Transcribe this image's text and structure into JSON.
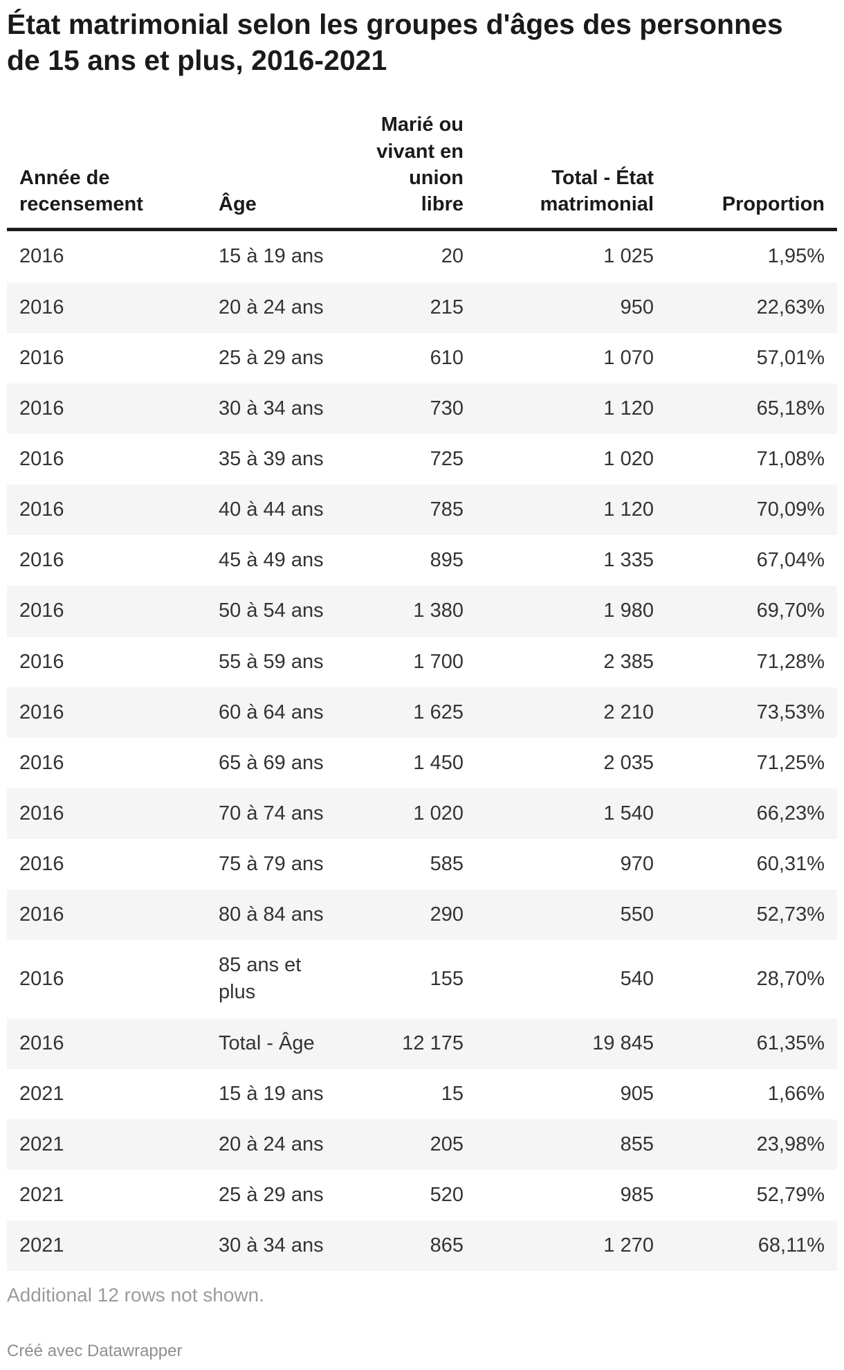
{
  "title": "État matrimonial selon les groupes d'âges des personnes de 15 ans et plus, 2016-2021",
  "chart_data": {
    "type": "table",
    "columns": [
      {
        "label": "Année de recensement",
        "align": "left"
      },
      {
        "label": "Âge",
        "align": "left"
      },
      {
        "label": "Marié ou vivant en union libre",
        "align": "right"
      },
      {
        "label": "Total - État matrimonial",
        "align": "right"
      },
      {
        "label": "Proportion",
        "align": "right"
      }
    ],
    "rows": [
      [
        "2016",
        "15 à 19 ans",
        "20",
        "1 025",
        "1,95%"
      ],
      [
        "2016",
        "20 à 24 ans",
        "215",
        "950",
        "22,63%"
      ],
      [
        "2016",
        "25 à 29 ans",
        "610",
        "1 070",
        "57,01%"
      ],
      [
        "2016",
        "30 à 34 ans",
        "730",
        "1 120",
        "65,18%"
      ],
      [
        "2016",
        "35 à 39 ans",
        "725",
        "1 020",
        "71,08%"
      ],
      [
        "2016",
        "40 à 44 ans",
        "785",
        "1 120",
        "70,09%"
      ],
      [
        "2016",
        "45 à 49 ans",
        "895",
        "1 335",
        "67,04%"
      ],
      [
        "2016",
        "50 à 54 ans",
        "1 380",
        "1 980",
        "69,70%"
      ],
      [
        "2016",
        "55 à 59 ans",
        "1 700",
        "2 385",
        "71,28%"
      ],
      [
        "2016",
        "60 à 64 ans",
        "1 625",
        "2 210",
        "73,53%"
      ],
      [
        "2016",
        "65 à 69 ans",
        "1 450",
        "2 035",
        "71,25%"
      ],
      [
        "2016",
        "70 à 74 ans",
        "1 020",
        "1 540",
        "66,23%"
      ],
      [
        "2016",
        "75 à 79 ans",
        "585",
        "970",
        "60,31%"
      ],
      [
        "2016",
        "80 à 84 ans",
        "290",
        "550",
        "52,73%"
      ],
      [
        "2016",
        "85 ans et plus",
        "155",
        "540",
        "28,70%"
      ],
      [
        "2016",
        "Total - Âge",
        "12 175",
        "19 845",
        "61,35%"
      ],
      [
        "2021",
        "15 à 19 ans",
        "15",
        "905",
        "1,66%"
      ],
      [
        "2021",
        "20 à 24 ans",
        "205",
        "855",
        "23,98%"
      ],
      [
        "2021",
        "25 à 29 ans",
        "520",
        "985",
        "52,79%"
      ],
      [
        "2021",
        "30 à 34 ans",
        "865",
        "1 270",
        "68,11%"
      ]
    ],
    "layout": {
      "striped": true,
      "stripe_color": "#f5f5f5",
      "header_border_color": "#1d1d1d"
    }
  },
  "footer": {
    "note": "Additional 12 rows not shown.",
    "attribution": "Créé avec Datawrapper"
  }
}
